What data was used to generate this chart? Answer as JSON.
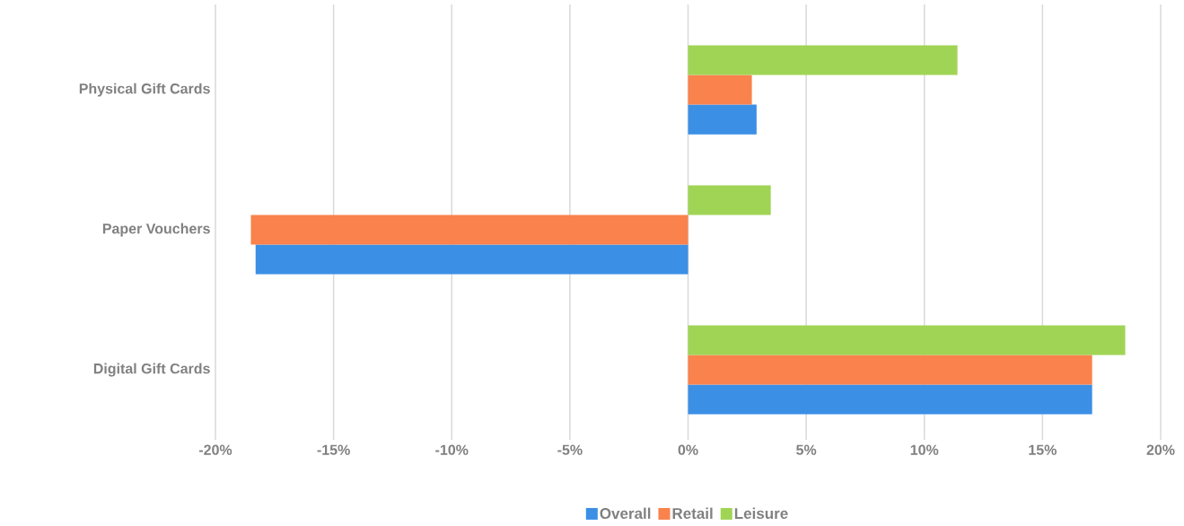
{
  "chart_data": {
    "type": "bar",
    "orientation": "horizontal",
    "categories": [
      "Physical Gift Cards",
      "Paper Vouchers",
      "Digital Gift Cards"
    ],
    "series": [
      {
        "name": "Overall",
        "color": "#3b8fe5",
        "values": [
          2.9,
          -18.3,
          17.1
        ]
      },
      {
        "name": "Retail",
        "color": "#fa824c",
        "values": [
          2.7,
          -18.5,
          17.1
        ]
      },
      {
        "name": "Leisure",
        "color": "#a0d455",
        "values": [
          11.4,
          3.5,
          18.5
        ]
      }
    ],
    "xlim": [
      -20,
      20
    ],
    "xticks": [
      {
        "value": -20,
        "label": "-20%"
      },
      {
        "value": -15,
        "label": "-15%"
      },
      {
        "value": -10,
        "label": "-10%"
      },
      {
        "value": -5,
        "label": "-5%"
      },
      {
        "value": 0,
        "label": "0%"
      },
      {
        "value": 5,
        "label": "5%"
      },
      {
        "value": 10,
        "label": "10%"
      },
      {
        "value": 15,
        "label": "15%"
      },
      {
        "value": 20,
        "label": "20%"
      }
    ],
    "grid": "x",
    "legend": "bottom"
  }
}
